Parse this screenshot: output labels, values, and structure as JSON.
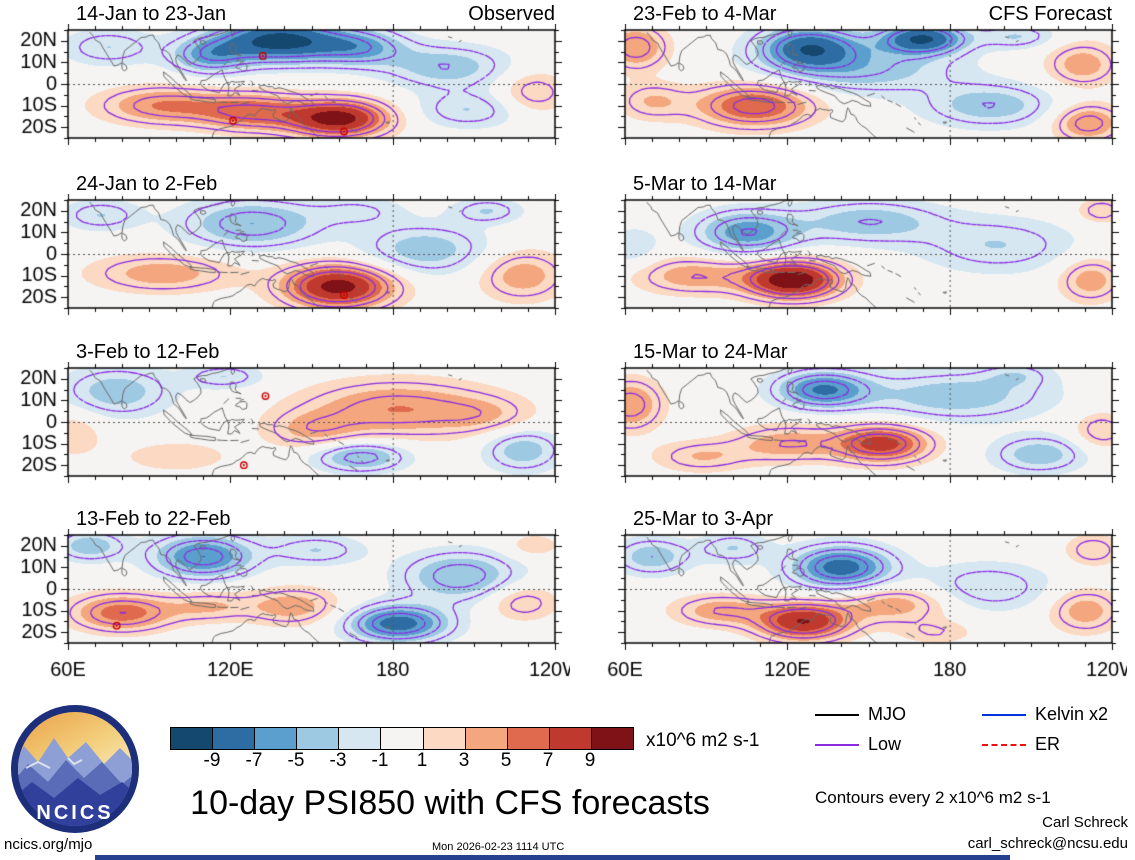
{
  "figure": {
    "main_title": "10-day PSI850 with CFS forecasts",
    "site": "ncics.org/mjo",
    "timestamp": "Mon 2026-02-23 1114 UTC",
    "credit_name": "Carl Schreck",
    "credit_email": "carl_schreck@ncsu.edu",
    "contours_note": "Contours every 2 x10^6 m2 s-1",
    "units_label": "x10^6 m2 s-1",
    "logo_text": "NCICS"
  },
  "legend": {
    "items": [
      {
        "label": "MJO",
        "color": "#000000",
        "dashed": false
      },
      {
        "label": "Kelvin x2",
        "color": "#0033dd",
        "dashed": false
      },
      {
        "label": "Low",
        "color": "#8a2be2",
        "dashed": false
      },
      {
        "label": "ER",
        "color": "#ee1111",
        "dashed": true
      }
    ]
  },
  "colorbar": {
    "levels": [
      -9,
      -7,
      -5,
      -3,
      -1,
      1,
      3,
      5,
      7,
      9
    ],
    "labels": [
      "-9",
      "-7",
      "-5",
      "-3",
      "-1",
      "1",
      "3",
      "5",
      "7",
      "9"
    ],
    "colors": [
      "#15486f",
      "#2e6da4",
      "#5b9fce",
      "#9ec9e2",
      "#d6e7f2",
      "#f5f4f2",
      "#fbd9c3",
      "#f4a77f",
      "#e06a4e",
      "#c0392e",
      "#7f1216"
    ]
  },
  "chart_data": {
    "type": "filled_contour_map_grid",
    "value_units": "x10^6 m2 s-1",
    "contour_interval": 2,
    "contour_color": "#8a2be2",
    "column_headers": [
      "Observed",
      "CFS Forecast"
    ],
    "axes": {
      "lon_range": [
        60,
        240
      ],
      "lat_range": [
        -25,
        25
      ],
      "lon_ticks": [
        {
          "v": 60,
          "label": "60E"
        },
        {
          "v": 120,
          "label": "120E"
        },
        {
          "v": 180,
          "label": "180"
        },
        {
          "v": 240,
          "label": "120W"
        }
      ],
      "lat_ticks": [
        {
          "v": 20,
          "label": "20N"
        },
        {
          "v": 10,
          "label": "10N"
        },
        {
          "v": 0,
          "label": "0"
        },
        {
          "v": -10,
          "label": "10S"
        },
        {
          "v": -20,
          "label": "20S"
        }
      ]
    },
    "panels": [
      {
        "title": "14-Jan to 23-Jan",
        "kind": "observed",
        "col": 0,
        "row": 0,
        "anomaly_centers": [
          {
            "lon": 138,
            "lat": 20,
            "amp": -10,
            "sx": 16,
            "sy": 7
          },
          {
            "lon": 112,
            "lat": 13,
            "amp": -5,
            "sx": 10,
            "sy": 6
          },
          {
            "lon": 168,
            "lat": 17,
            "amp": -5,
            "sx": 12,
            "sy": 6
          },
          {
            "lon": 75,
            "lat": 17,
            "amp": -3,
            "sx": 12,
            "sy": 6
          },
          {
            "lon": 95,
            "lat": -10,
            "amp": 5,
            "sx": 16,
            "sy": 6
          },
          {
            "lon": 128,
            "lat": -13,
            "amp": 6,
            "sx": 14,
            "sy": 6
          },
          {
            "lon": 160,
            "lat": -16,
            "amp": 10,
            "sx": 13,
            "sy": 6
          },
          {
            "lon": 200,
            "lat": 8,
            "amp": -4,
            "sx": 16,
            "sy": 7
          },
          {
            "lon": 208,
            "lat": -12,
            "amp": -3,
            "sx": 14,
            "sy": 6
          },
          {
            "lon": 232,
            "lat": -4,
            "amp": 3,
            "sx": 9,
            "sy": 7
          }
        ],
        "storms": [
          {
            "lon": 132,
            "lat": 13
          },
          {
            "lon": 121,
            "lat": -17
          },
          {
            "lon": 162,
            "lat": -22
          }
        ]
      },
      {
        "title": "24-Jan to 2-Feb",
        "kind": "observed",
        "col": 0,
        "row": 1,
        "anomaly_centers": [
          {
            "lon": 128,
            "lat": 14,
            "amp": -5,
            "sx": 18,
            "sy": 8
          },
          {
            "lon": 72,
            "lat": 18,
            "amp": -3,
            "sx": 10,
            "sy": 5
          },
          {
            "lon": 160,
            "lat": -15,
            "amp": 10,
            "sx": 14,
            "sy": 7
          },
          {
            "lon": 95,
            "lat": -9,
            "amp": 4,
            "sx": 18,
            "sy": 6
          },
          {
            "lon": 192,
            "lat": 2,
            "amp": -4,
            "sx": 16,
            "sy": 8
          },
          {
            "lon": 168,
            "lat": 20,
            "amp": -2,
            "sx": 12,
            "sy": 5
          },
          {
            "lon": 228,
            "lat": -10,
            "amp": 4,
            "sx": 11,
            "sy": 8
          },
          {
            "lon": 215,
            "lat": 20,
            "amp": -3,
            "sx": 9,
            "sy": 4
          }
        ],
        "storms": [
          {
            "lon": 162,
            "lat": -19
          }
        ]
      },
      {
        "title": "3-Feb to 12-Feb",
        "kind": "observed",
        "col": 0,
        "row": 2,
        "anomaly_centers": [
          {
            "lon": 78,
            "lat": 14,
            "amp": -4,
            "sx": 14,
            "sy": 8
          },
          {
            "lon": 118,
            "lat": 21,
            "amp": -3,
            "sx": 10,
            "sy": 4
          },
          {
            "lon": 182,
            "lat": 6,
            "amp": 5,
            "sx": 24,
            "sy": 9
          },
          {
            "lon": 150,
            "lat": -4,
            "amp": 3,
            "sx": 12,
            "sy": 6
          },
          {
            "lon": 168,
            "lat": -16,
            "amp": -5,
            "sx": 12,
            "sy": 5
          },
          {
            "lon": 228,
            "lat": -13,
            "amp": -4,
            "sx": 10,
            "sy": 7
          },
          {
            "lon": 100,
            "lat": -16,
            "amp": 2,
            "sx": 14,
            "sy": 5
          },
          {
            "lon": 62,
            "lat": -5,
            "amp": 2,
            "sx": 8,
            "sy": 8
          },
          {
            "lon": 215,
            "lat": 3,
            "amp": 2,
            "sx": 12,
            "sy": 6
          }
        ],
        "storms": [
          {
            "lon": 133,
            "lat": 12
          },
          {
            "lon": 125,
            "lat": -20
          }
        ]
      },
      {
        "title": "13-Feb to 22-Feb",
        "kind": "observed",
        "col": 0,
        "row": 3,
        "anomaly_centers": [
          {
            "lon": 110,
            "lat": 15,
            "amp": -7,
            "sx": 13,
            "sy": 7
          },
          {
            "lon": 68,
            "lat": 20,
            "amp": -4,
            "sx": 9,
            "sy": 5
          },
          {
            "lon": 152,
            "lat": 18,
            "amp": -3,
            "sx": 12,
            "sy": 5
          },
          {
            "lon": 80,
            "lat": -11,
            "amp": 6,
            "sx": 13,
            "sy": 6
          },
          {
            "lon": 112,
            "lat": -8,
            "amp": 3,
            "sx": 11,
            "sy": 5
          },
          {
            "lon": 143,
            "lat": -8,
            "amp": 4,
            "sx": 12,
            "sy": 6
          },
          {
            "lon": 182,
            "lat": -16,
            "amp": -8,
            "sx": 13,
            "sy": 6
          },
          {
            "lon": 205,
            "lat": 6,
            "amp": -5,
            "sx": 15,
            "sy": 8
          },
          {
            "lon": 228,
            "lat": -6,
            "amp": 3,
            "sx": 9,
            "sy": 6
          },
          {
            "lon": 232,
            "lat": 20,
            "amp": 2,
            "sx": 7,
            "sy": 4
          }
        ],
        "storms": [
          {
            "lon": 78,
            "lat": -17
          }
        ]
      },
      {
        "title": "23-Feb to 4-Mar",
        "kind": "forecast",
        "col": 1,
        "row": 0,
        "anomaly_centers": [
          {
            "lon": 128,
            "lat": 17,
            "amp": -8,
            "sx": 13,
            "sy": 7
          },
          {
            "lon": 170,
            "lat": 21,
            "amp": -9,
            "sx": 11,
            "sy": 5
          },
          {
            "lon": 148,
            "lat": 7,
            "amp": -4,
            "sx": 24,
            "sy": 8
          },
          {
            "lon": 64,
            "lat": 17,
            "amp": 5,
            "sx": 8,
            "sy": 7
          },
          {
            "lon": 108,
            "lat": -10,
            "amp": 7,
            "sx": 15,
            "sy": 7
          },
          {
            "lon": 70,
            "lat": -8,
            "amp": 3,
            "sx": 9,
            "sy": 6
          },
          {
            "lon": 195,
            "lat": -10,
            "amp": -4,
            "sx": 17,
            "sy": 7
          },
          {
            "lon": 231,
            "lat": -18,
            "amp": 5,
            "sx": 9,
            "sy": 6
          },
          {
            "lon": 229,
            "lat": 9,
            "amp": 4,
            "sx": 9,
            "sy": 7
          },
          {
            "lon": 205,
            "lat": 22,
            "amp": -3,
            "sx": 10,
            "sy": 4
          }
        ],
        "storms": []
      },
      {
        "title": "5-Mar to 14-Mar",
        "kind": "forecast",
        "col": 1,
        "row": 1,
        "anomaly_centers": [
          {
            "lon": 122,
            "lat": -12,
            "amp": 11,
            "sx": 12,
            "sy": 6
          },
          {
            "lon": 85,
            "lat": -10,
            "amp": 4,
            "sx": 15,
            "sy": 6
          },
          {
            "lon": 105,
            "lat": 10,
            "amp": -6,
            "sx": 13,
            "sy": 7
          },
          {
            "lon": 150,
            "lat": 15,
            "amp": -4,
            "sx": 19,
            "sy": 7
          },
          {
            "lon": 198,
            "lat": 4,
            "amp": -3,
            "sx": 20,
            "sy": 9
          },
          {
            "lon": 232,
            "lat": -12,
            "amp": 4,
            "sx": 8,
            "sy": 7
          },
          {
            "lon": 236,
            "lat": 20,
            "amp": 3,
            "sx": 6,
            "sy": 4
          },
          {
            "lon": 63,
            "lat": 3,
            "amp": -2,
            "sx": 7,
            "sy": 7
          }
        ],
        "storms": []
      },
      {
        "title": "15-Mar to 24-Mar",
        "kind": "forecast",
        "col": 1,
        "row": 2,
        "anomaly_centers": [
          {
            "lon": 133,
            "lat": 15,
            "amp": -7,
            "sx": 12,
            "sy": 6
          },
          {
            "lon": 182,
            "lat": 12,
            "amp": -4,
            "sx": 24,
            "sy": 8
          },
          {
            "lon": 62,
            "lat": 8,
            "amp": 5,
            "sx": 8,
            "sy": 8
          },
          {
            "lon": 155,
            "lat": -10,
            "amp": 8,
            "sx": 12,
            "sy": 6
          },
          {
            "lon": 120,
            "lat": -10,
            "amp": 4,
            "sx": 14,
            "sy": 6
          },
          {
            "lon": 88,
            "lat": -16,
            "amp": 3,
            "sx": 12,
            "sy": 5
          },
          {
            "lon": 213,
            "lat": -15,
            "amp": -4,
            "sx": 12,
            "sy": 6
          },
          {
            "lon": 236,
            "lat": -4,
            "amp": 3,
            "sx": 7,
            "sy": 6
          },
          {
            "lon": 205,
            "lat": 22,
            "amp": -2,
            "sx": 9,
            "sy": 4
          }
        ],
        "storms": []
      },
      {
        "title": "25-Mar to 3-Apr",
        "kind": "forecast",
        "col": 1,
        "row": 3,
        "anomaly_centers": [
          {
            "lon": 140,
            "lat": 10,
            "amp": -8,
            "sx": 13,
            "sy": 7
          },
          {
            "lon": 70,
            "lat": 15,
            "amp": -4,
            "sx": 10,
            "sy": 6
          },
          {
            "lon": 100,
            "lat": 19,
            "amp": -3,
            "sx": 9,
            "sy": 5
          },
          {
            "lon": 126,
            "lat": -15,
            "amp": 9,
            "sx": 12,
            "sy": 6
          },
          {
            "lon": 95,
            "lat": -10,
            "amp": 4,
            "sx": 12,
            "sy": 5
          },
          {
            "lon": 160,
            "lat": -7,
            "amp": 4,
            "sx": 14,
            "sy": 6
          },
          {
            "lon": 194,
            "lat": 1,
            "amp": -3,
            "sx": 17,
            "sy": 8
          },
          {
            "lon": 230,
            "lat": -10,
            "amp": 4,
            "sx": 9,
            "sy": 7
          },
          {
            "lon": 233,
            "lat": 18,
            "amp": 3,
            "sx": 7,
            "sy": 5
          },
          {
            "lon": 175,
            "lat": -20,
            "amp": 2,
            "sx": 10,
            "sy": 4
          }
        ],
        "storms": []
      }
    ]
  }
}
